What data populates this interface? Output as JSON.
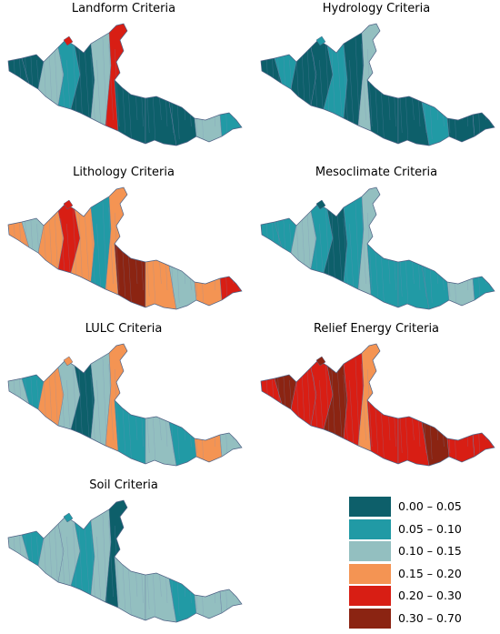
{
  "maps": [
    {
      "title": "Landform Criteria",
      "base": "#0d5f6a",
      "pattern": [
        "#0d5f6a",
        "#0d5f6a",
        "#93bfc0",
        "#219aa5",
        "#0d5f6a",
        "#93bfc0",
        "#d81e14",
        "#0d5f6a"
      ],
      "hot": "#d81e14"
    },
    {
      "title": "Hydrology Criteria",
      "base": "#0d5f6a",
      "pattern": [
        "#0d5f6a",
        "#219aa5",
        "#0d5f6a",
        "#0d5f6a",
        "#219aa5",
        "#0d5f6a",
        "#93bfc0",
        "#0d5f6a"
      ],
      "hot": "#219aa5"
    },
    {
      "title": "Lithology Criteria",
      "base": "#f49453",
      "pattern": [
        "#f49453",
        "#93bfc0",
        "#f49453",
        "#d81e14",
        "#f49453",
        "#219aa5",
        "#f49453",
        "#8b2412"
      ],
      "hot": "#d81e14"
    },
    {
      "title": "Mesoclimate Criteria",
      "base": "#219aa5",
      "pattern": [
        "#219aa5",
        "#219aa5",
        "#93bfc0",
        "#219aa5",
        "#0d5f6a",
        "#219aa5",
        "#93bfc0",
        "#219aa5"
      ],
      "hot": "#0d5f6a"
    },
    {
      "title": "LULC Criteria",
      "base": "#93bfc0",
      "pattern": [
        "#93bfc0",
        "#219aa5",
        "#f49453",
        "#93bfc0",
        "#0d5f6a",
        "#93bfc0",
        "#f49453",
        "#219aa5"
      ],
      "hot": "#f49453"
    },
    {
      "title": "Relief Energy Criteria",
      "base": "#d81e14",
      "pattern": [
        "#d81e14",
        "#8b2412",
        "#d81e14",
        "#d81e14",
        "#8b2412",
        "#d81e14",
        "#f49453",
        "#d81e14"
      ],
      "hot": "#8b2412"
    },
    {
      "title": "Soil Criteria",
      "base": "#93bfc0",
      "pattern": [
        "#93bfc0",
        "#219aa5",
        "#93bfc0",
        "#93bfc0",
        "#219aa5",
        "#93bfc0",
        "#0d5f6a",
        "#93bfc0"
      ],
      "hot": "#219aa5"
    }
  ],
  "legend": [
    {
      "label": "0.00 – 0.05",
      "color": "#0d5f6a"
    },
    {
      "label": "0.05 – 0.10",
      "color": "#219aa5"
    },
    {
      "label": "0.10 – 0.15",
      "color": "#93bfc0"
    },
    {
      "label": "0.15 – 0.20",
      "color": "#f49453"
    },
    {
      "label": "0.20 – 0.30",
      "color": "#d81e14"
    },
    {
      "label": "0.30 – 0.70",
      "color": "#8b2412"
    }
  ]
}
